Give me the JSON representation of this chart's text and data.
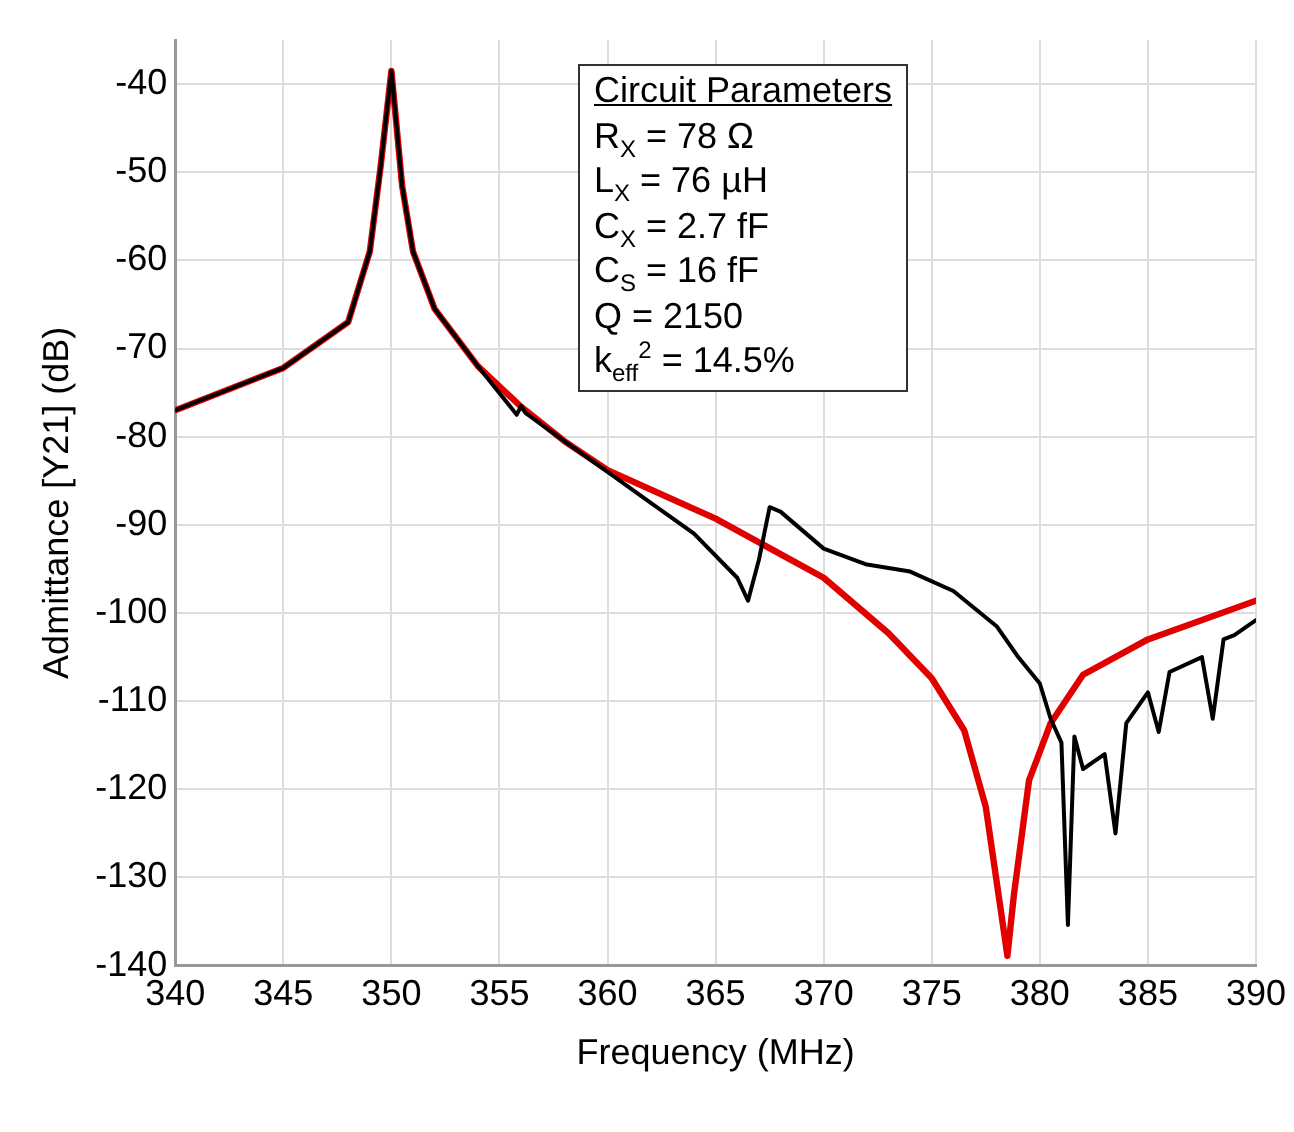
{
  "chart_data": {
    "type": "line",
    "xlabel": "Frequency (MHz)",
    "ylabel": "Admittance [Y21] (dB)",
    "xlim": [
      340,
      390
    ],
    "xticks": [
      340,
      345,
      350,
      355,
      360,
      365,
      370,
      375,
      380,
      385,
      390
    ],
    "ylim": [
      -140,
      -35
    ],
    "yticks": [
      -140,
      -130,
      -120,
      -110,
      -100,
      -90,
      -80,
      -70,
      -60,
      -50,
      -40
    ],
    "grid": true,
    "legend": false,
    "marker": "none",
    "line_style": "solid",
    "annotations": [
      "Circuit Parameters",
      "R$_{X}$ = 78 Ω",
      "L$_{X}$ = 76 µH",
      "C$_{X}$ = 2.7 fF",
      "C$_{S}$ = 16 fF",
      "Q = 2150",
      "k$_{eff}$$^{2}$ = 14.5%"
    ],
    "series": [
      {
        "color": "#000000",
        "x": [
          340,
          345,
          348,
          349,
          349.5,
          350,
          350.5,
          351,
          352,
          354,
          355.8,
          356,
          356.2,
          358,
          360,
          362,
          364,
          366,
          366.5,
          367,
          367.5,
          368,
          370,
          372,
          374,
          376,
          378,
          379,
          380,
          380.5,
          381,
          381.3,
          381.6,
          382,
          383,
          383.5,
          384,
          385,
          385.5,
          386,
          387.5,
          388,
          388.5,
          389,
          390
        ],
        "values": [
          -77,
          -72.2,
          -67,
          -59,
          -49.4,
          -38.5,
          -51.6,
          -59,
          -65.5,
          -72,
          -77.5,
          -76.5,
          -77.3,
          -80.5,
          -84,
          -87.5,
          -91,
          -96,
          -98.6,
          -94,
          -88,
          -88.5,
          -92.7,
          -94.5,
          -95.3,
          -97.5,
          -101.5,
          -105,
          -108,
          -112,
          -114.7,
          -135.4,
          -114,
          -117.7,
          -116,
          -125,
          -112.5,
          -109,
          -113.5,
          -106.7,
          -105,
          -112,
          -103,
          -102.5,
          -100.8
        ]
      },
      {
        "color": "#e00000",
        "x": [
          340,
          345,
          348,
          349,
          349.5,
          350,
          350.5,
          351,
          352,
          354,
          356,
          358,
          360,
          365,
          370,
          373,
          375,
          376.5,
          377.5,
          378.2,
          378.5,
          378.8,
          379.5,
          380.5,
          382,
          385,
          390
        ],
        "values": [
          -77,
          -72.2,
          -67,
          -59,
          -49.4,
          -38.5,
          -51.6,
          -59,
          -65.5,
          -72,
          -76.6,
          -80.5,
          -83.8,
          -89.3,
          -96,
          -102.3,
          -107.4,
          -113.3,
          -122,
          -133.8,
          -138.9,
          -132,
          -119,
          -112.5,
          -107,
          -103,
          -98.6
        ]
      }
    ]
  }
}
